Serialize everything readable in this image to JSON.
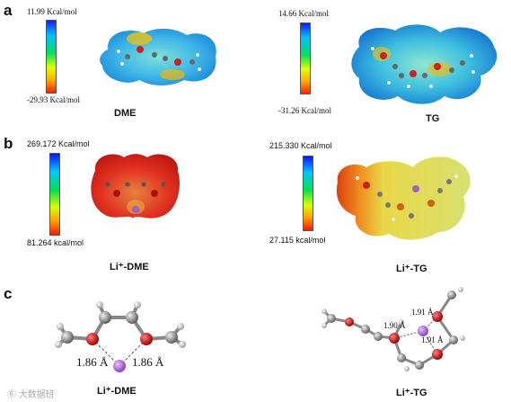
{
  "panels": {
    "a": {
      "letter": "a",
      "left": {
        "top_label": "11.99 Kcal/mol",
        "bottom_label": "-29.93 Kcal/mol",
        "caption": "DME"
      },
      "right": {
        "top_label": "14.66 Kcal/mol",
        "bottom_label": "-31.26 Kcal/mol",
        "caption": "TG"
      }
    },
    "b": {
      "letter": "b",
      "left": {
        "top_label": "269.172 Kcal/mol",
        "bottom_label": "81.264 kcal/mol",
        "caption": "Li⁺-DME"
      },
      "right": {
        "top_label": "215.330 Kcal/mol",
        "bottom_label": "27.115 kcal/mol",
        "caption": "Li⁺-TG"
      }
    },
    "c": {
      "letter": "c",
      "left": {
        "bond1": "1.86 Å",
        "bond2": "1.86 Å",
        "caption": "Li⁺-DME"
      },
      "right": {
        "bond1": "1.91 Å",
        "bond2": "1.90 Å",
        "bond3": "1.91 Å",
        "caption": "Li⁺-TG"
      }
    }
  },
  "watermark": "⑥ 大数据班"
}
